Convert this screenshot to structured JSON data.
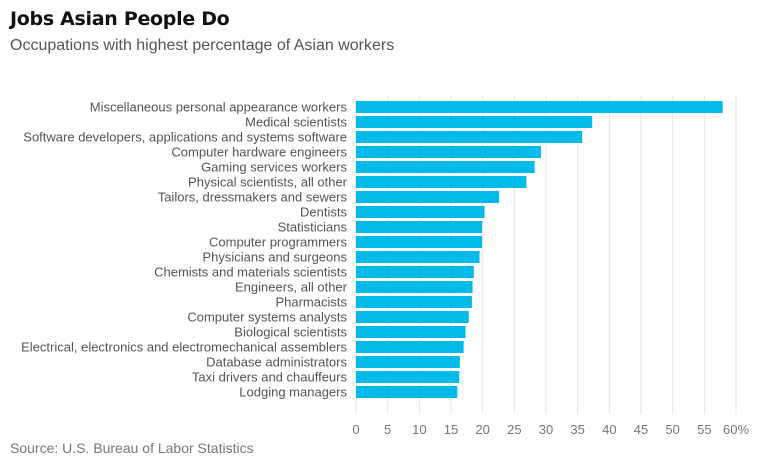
{
  "title": "Jobs Asian People Do",
  "subtitle": "Occupations with highest percentage of Asian workers",
  "source": "Source: U.S. Bureau of Labor Statistics",
  "colors": {
    "bar": "#00BBEA",
    "grid": "#e6e6e6",
    "label": "#555555"
  },
  "chart_data": {
    "type": "bar",
    "orientation": "horizontal",
    "title": "Jobs Asian People Do",
    "subtitle": "Occupations with highest percentage of Asian workers",
    "categories": [
      "Miscellaneous personal appearance workers",
      "Medical scientists",
      "Software developers, applications and systems software",
      "Computer hardware engineers",
      "Gaming services workers",
      "Physical scientists, all other",
      "Tailors, dressmakers and sewers",
      "Dentists",
      "Statisticians",
      "Computer programmers",
      "Physicians and surgeons",
      "Chemists and materials scientists",
      "Engineers, all other",
      "Pharmacists",
      "Computer systems analysts",
      "Biological scientists",
      "Electrical, electronics and electromechanical assemblers",
      "Database administrators",
      "Taxi drivers and chauffeurs",
      "Lodging managers"
    ],
    "values": [
      57.9,
      37.3,
      35.7,
      29.2,
      28.2,
      26.9,
      22.6,
      20.3,
      19.9,
      19.9,
      19.5,
      18.6,
      18.4,
      18.3,
      17.8,
      17.3,
      17.0,
      16.4,
      16.3,
      16.0
    ],
    "xlim": [
      0,
      60
    ],
    "xticks": [
      0,
      5,
      10,
      15,
      20,
      25,
      30,
      35,
      40,
      45,
      50,
      55,
      60
    ],
    "xtick_labels": [
      "0",
      "5",
      "10",
      "15",
      "20",
      "25",
      "30",
      "35",
      "40",
      "45",
      "50",
      "55",
      "60%"
    ],
    "grid": true
  }
}
